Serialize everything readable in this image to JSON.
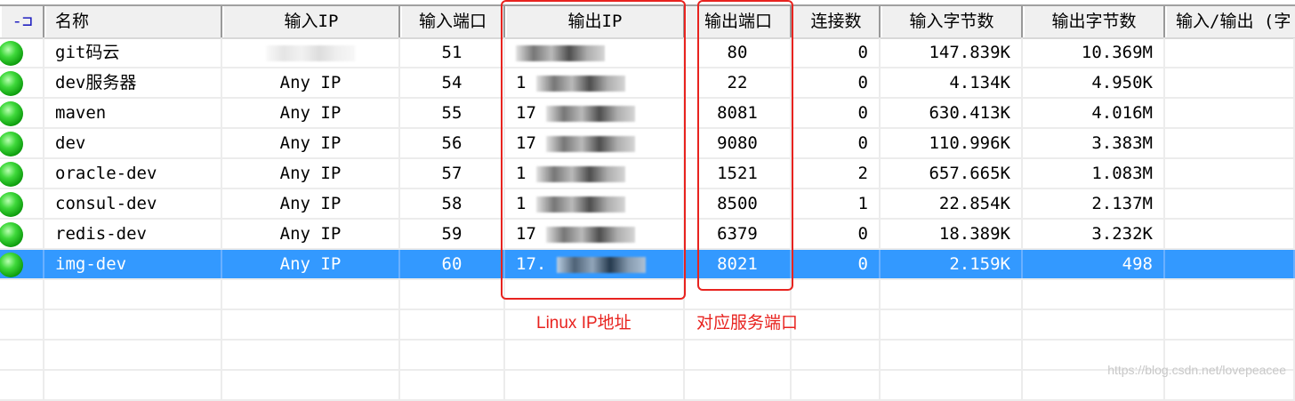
{
  "columns": [
    "名称",
    "输入IP",
    "输入端口",
    "输出IP",
    "输出端口",
    "连接数",
    "输入字节数",
    "输出字节数",
    "输入/输出 (字"
  ],
  "rows": [
    {
      "name": "git码云",
      "in_ip": "",
      "in_port": "51",
      "out_ip": "",
      "out_port": "80",
      "conn": "0",
      "in_bytes": "147.839K",
      "out_bytes": "10.369M"
    },
    {
      "name": "dev服务器",
      "in_ip": "Any IP",
      "in_port": "54",
      "out_ip": "1",
      "out_port": "22",
      "conn": "0",
      "in_bytes": "4.134K",
      "out_bytes": "4.950K"
    },
    {
      "name": "maven",
      "in_ip": "Any IP",
      "in_port": "55",
      "out_ip": "17",
      "out_port": "8081",
      "conn": "0",
      "in_bytes": "630.413K",
      "out_bytes": "4.016M"
    },
    {
      "name": "dev",
      "in_ip": "Any IP",
      "in_port": "56",
      "out_ip": "17",
      "out_port": "9080",
      "conn": "0",
      "in_bytes": "110.996K",
      "out_bytes": "3.383M"
    },
    {
      "name": "oracle-dev",
      "in_ip": "Any IP",
      "in_port": "57",
      "out_ip": "1",
      "out_port": "1521",
      "conn": "2",
      "in_bytes": "657.665K",
      "out_bytes": "1.083M"
    },
    {
      "name": "consul-dev",
      "in_ip": "Any IP",
      "in_port": "58",
      "out_ip": "1",
      "out_port": "8500",
      "conn": "1",
      "in_bytes": "22.854K",
      "out_bytes": "2.137M"
    },
    {
      "name": "redis-dev",
      "in_ip": "Any IP",
      "in_port": "59",
      "out_ip": "17",
      "out_port": "6379",
      "conn": "0",
      "in_bytes": "18.389K",
      "out_bytes": "3.232K"
    },
    {
      "name": "img-dev",
      "in_ip": "Any IP",
      "in_port": "60",
      "out_ip": "17.",
      "out_port": "8021",
      "conn": "0",
      "in_bytes": "2.159K",
      "out_bytes": "498",
      "selected": true
    }
  ],
  "annotations": {
    "ip": "Linux IP地址",
    "port": "对应服务端口"
  },
  "watermark": "https://blog.csdn.net/lovepeacee",
  "colors": {
    "selected": "#3399ff",
    "annotation": "#e8231f"
  }
}
